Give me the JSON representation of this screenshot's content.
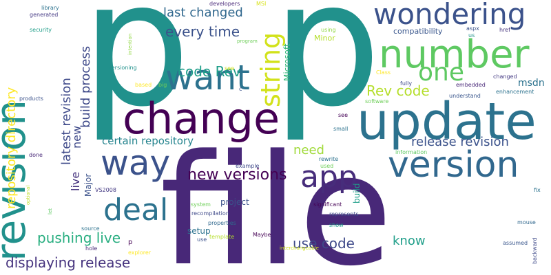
{
  "words": [
    {
      "text": "p",
      "color": "#21918c"
    },
    {
      "text": "p",
      "color": "#21918c"
    },
    {
      "text": "file",
      "color": "#482878"
    },
    {
      "text": "update",
      "color": "#2c728e"
    },
    {
      "text": "change",
      "color": "#440154"
    },
    {
      "text": "revision",
      "color": "#21918c"
    },
    {
      "text": "number",
      "color": "#5ec962"
    },
    {
      "text": "version",
      "color": "#31688e"
    },
    {
      "text": "want",
      "color": "#2c728e"
    },
    {
      "text": "wondering",
      "color": "#3b528b"
    },
    {
      "text": "way",
      "color": "#3b528b"
    },
    {
      "text": "string",
      "color": "#d2e21b"
    },
    {
      "text": "one",
      "color": "#5ec962"
    },
    {
      "text": "deal",
      "color": "#2c728e"
    },
    {
      "text": "app",
      "color": "#472d7b"
    },
    {
      "text": "new versions",
      "color": "#440154"
    },
    {
      "text": "release revision",
      "color": "#3b528b"
    },
    {
      "text": "displaying release",
      "color": "#46337e"
    },
    {
      "text": "pushing live",
      "color": "#28ae80"
    },
    {
      "text": "use code",
      "color": "#3e4989"
    },
    {
      "text": "Rev code",
      "color": "#b5de2b"
    },
    {
      "text": "code Rev",
      "color": "#1f9e89"
    },
    {
      "text": "every time",
      "color": "#3b528b"
    },
    {
      "text": "last changed",
      "color": "#31688e"
    },
    {
      "text": "repository directory",
      "color": "#fde725"
    },
    {
      "text": "latest revision",
      "color": "#3e4989"
    },
    {
      "text": "build process",
      "color": "#3e4989"
    },
    {
      "text": "certain repository",
      "color": "#25848e"
    },
    {
      "text": "live",
      "color": "#46337e"
    },
    {
      "text": "new",
      "color": "#3e4989"
    },
    {
      "text": "need",
      "color": "#a0da39"
    },
    {
      "text": "know",
      "color": "#1f9e89"
    },
    {
      "text": "project",
      "color": "#3b528b"
    },
    {
      "text": "setup",
      "color": "#2c728e"
    },
    {
      "text": "build",
      "color": "#1f9e89"
    },
    {
      "text": "Major",
      "color": "#3b528b"
    },
    {
      "text": "msdn",
      "color": "#2c728e"
    },
    {
      "text": "compatibility",
      "color": "#39568c"
    },
    {
      "text": "Microsoft",
      "color": "#35b779"
    },
    {
      "text": "Minor",
      "color": "#b5de2b"
    },
    {
      "text": "developers",
      "color": "#482878"
    },
    {
      "text": "generated",
      "color": "#443983"
    },
    {
      "text": "library",
      "color": "#2c728e"
    },
    {
      "text": "security",
      "color": "#1f9e89"
    },
    {
      "text": "versioning",
      "color": "#21918c"
    },
    {
      "text": "intention",
      "color": "#90d743"
    },
    {
      "text": "program",
      "color": "#6ece58"
    },
    {
      "text": "MSI",
      "color": "#d8e219"
    },
    {
      "text": "using",
      "color": "#90d743"
    },
    {
      "text": "products",
      "color": "#3b528b"
    },
    {
      "text": "done",
      "color": "#482878"
    },
    {
      "text": "optional",
      "color": "#bddf26"
    },
    {
      "text": "VS2008",
      "color": "#443983"
    },
    {
      "text": "example",
      "color": "#3e4989"
    },
    {
      "text": "rewrite",
      "color": "#2c728e"
    },
    {
      "text": "used",
      "color": "#6ece58"
    },
    {
      "text": "see",
      "color": "#440154"
    },
    {
      "text": "small",
      "color": "#2c728e"
    },
    {
      "text": "information",
      "color": "#5ec962"
    },
    {
      "text": "Class",
      "color": "#fde725"
    },
    {
      "text": "fully",
      "color": "#3e4989"
    },
    {
      "text": "software",
      "color": "#6ece58"
    },
    {
      "text": "understand",
      "color": "#39568c"
    },
    {
      "text": "embedded",
      "color": "#482878"
    },
    {
      "text": "enhancement",
      "color": "#2c728e"
    },
    {
      "text": "changed",
      "color": "#443983"
    },
    {
      "text": "aspx",
      "color": "#3b528b"
    },
    {
      "text": "us",
      "color": "#21918c"
    },
    {
      "text": "href",
      "color": "#46337e"
    },
    {
      "text": "fix",
      "color": "#2c728e"
    },
    {
      "text": "mouse",
      "color": "#31688e"
    },
    {
      "text": "assumed",
      "color": "#39568c"
    },
    {
      "text": "backward",
      "color": "#3e4989"
    },
    {
      "text": "significant",
      "color": "#440154"
    },
    {
      "text": "represents",
      "color": "#3e4989"
    },
    {
      "text": "show",
      "color": "#1f9e89"
    },
    {
      "text": "interchangeable",
      "color": "#d2e21b"
    },
    {
      "text": "Maybe",
      "color": "#440154"
    },
    {
      "text": "system",
      "color": "#6ece58"
    },
    {
      "text": "recompilation",
      "color": "#3e4989"
    },
    {
      "text": "properties",
      "color": "#31688e"
    },
    {
      "text": "template",
      "color": "#b5de2b"
    },
    {
      "text": "use",
      "color": "#3b528b"
    },
    {
      "text": "source",
      "color": "#2c728e"
    },
    {
      "text": "hole",
      "color": "#482878"
    },
    {
      "text": "explorer",
      "color": "#fde725"
    },
    {
      "text": "based",
      "color": "#fde725"
    },
    {
      "text": "big",
      "color": "#6ece58"
    },
    {
      "text": "c",
      "color": "#3b528b"
    },
    {
      "text": "p",
      "color": "#440154"
    },
    {
      "text": "let",
      "color": "#5ec962"
    },
    {
      "text": "see",
      "color": "#d2e21b"
    }
  ]
}
